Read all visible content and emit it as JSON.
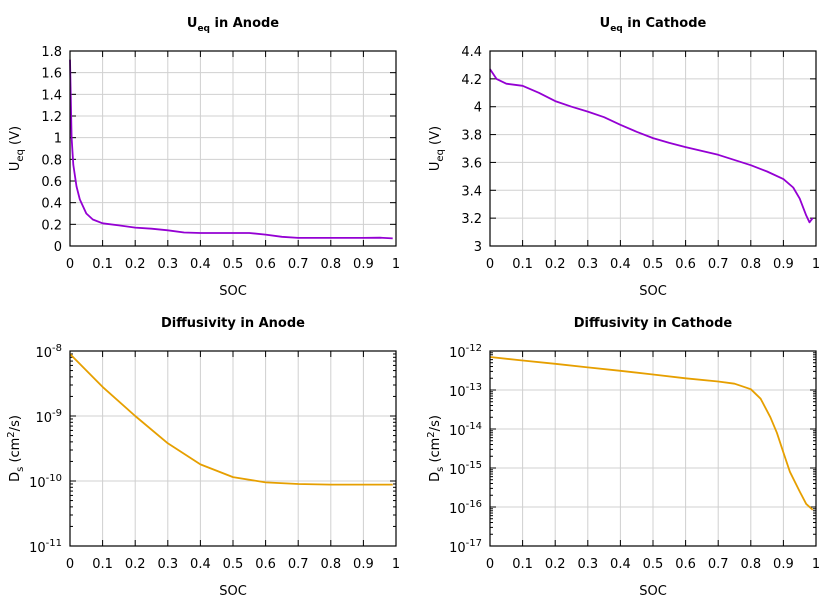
{
  "chart_data": [
    {
      "type": "line",
      "title": {
        "main": "U",
        "sub": "eq",
        "rest": " in Anode"
      },
      "xlabel": "SOC",
      "ylabel": {
        "main": "U",
        "sub": "eq",
        "rest": " (V)"
      },
      "xlim": [
        0,
        1
      ],
      "ylim": [
        0,
        1.8
      ],
      "yscale": "linear",
      "grid": true,
      "xticks": [
        0,
        0.1,
        0.2,
        0.3,
        0.4,
        0.5,
        0.6,
        0.7,
        0.8,
        0.9,
        1
      ],
      "xtick_labels": [
        "0",
        "0.1",
        "0.2",
        "0.3",
        "0.4",
        "0.5",
        "0.6",
        "0.7",
        "0.8",
        "0.9",
        "1"
      ],
      "yticks": [
        0,
        0.2,
        0.4,
        0.6,
        0.8,
        1,
        1.2,
        1.4,
        1.6,
        1.8
      ],
      "ytick_labels": [
        "0",
        "0.2",
        "0.4",
        "0.6",
        "0.8",
        "1",
        "1.2",
        "1.4",
        "1.6",
        "1.8"
      ],
      "color": "#9400d3",
      "x": [
        0,
        0.005,
        0.01,
        0.02,
        0.03,
        0.05,
        0.07,
        0.1,
        0.15,
        0.2,
        0.25,
        0.3,
        0.35,
        0.4,
        0.45,
        0.5,
        0.55,
        0.6,
        0.65,
        0.7,
        0.8,
        0.9,
        0.95,
        0.99
      ],
      "y": [
        1.72,
        1.0,
        0.75,
        0.55,
        0.43,
        0.3,
        0.245,
        0.21,
        0.19,
        0.17,
        0.16,
        0.145,
        0.125,
        0.12,
        0.12,
        0.12,
        0.12,
        0.105,
        0.085,
        0.075,
        0.075,
        0.075,
        0.077,
        0.07
      ]
    },
    {
      "type": "line",
      "title": {
        "main": "U",
        "sub": "eq",
        "rest": " in Cathode"
      },
      "xlabel": "SOC",
      "ylabel": {
        "main": "U",
        "sub": "eq",
        "rest": " (V)"
      },
      "xlim": [
        0,
        1
      ],
      "ylim": [
        3,
        4.4
      ],
      "yscale": "linear",
      "grid": true,
      "xticks": [
        0,
        0.1,
        0.2,
        0.3,
        0.4,
        0.5,
        0.6,
        0.7,
        0.8,
        0.9,
        1
      ],
      "xtick_labels": [
        "0",
        "0.1",
        "0.2",
        "0.3",
        "0.4",
        "0.5",
        "0.6",
        "0.7",
        "0.8",
        "0.9",
        "1"
      ],
      "yticks": [
        3,
        3.2,
        3.4,
        3.6,
        3.8,
        4,
        4.2,
        4.4
      ],
      "ytick_labels": [
        "3",
        "3.2",
        "3.4",
        "3.6",
        "3.8",
        "4",
        "4.2",
        "4.4"
      ],
      "color": "#9400d3",
      "x": [
        0,
        0.02,
        0.05,
        0.1,
        0.15,
        0.2,
        0.25,
        0.3,
        0.35,
        0.4,
        0.45,
        0.5,
        0.55,
        0.6,
        0.7,
        0.8,
        0.85,
        0.9,
        0.93,
        0.95,
        0.97,
        0.98,
        0.99
      ],
      "y": [
        4.27,
        4.2,
        4.165,
        4.15,
        4.1,
        4.04,
        4.0,
        3.965,
        3.925,
        3.87,
        3.82,
        3.775,
        3.74,
        3.71,
        3.655,
        3.58,
        3.535,
        3.48,
        3.42,
        3.34,
        3.22,
        3.17,
        3.2
      ]
    },
    {
      "type": "line",
      "title": {
        "main": "Diffusivity in Anode",
        "sub": "",
        "rest": ""
      },
      "xlabel": "SOC",
      "ylabel": {
        "main": "D",
        "sub": "s",
        "rest": " (cm",
        "sup": "2",
        "rest2": "/s)"
      },
      "xlim": [
        0,
        1
      ],
      "ylim": [
        1e-11,
        1e-08
      ],
      "yscale": "log",
      "grid": true,
      "xticks": [
        0,
        0.1,
        0.2,
        0.3,
        0.4,
        0.5,
        0.6,
        0.7,
        0.8,
        0.9,
        1
      ],
      "xtick_labels": [
        "0",
        "0.1",
        "0.2",
        "0.3",
        "0.4",
        "0.5",
        "0.6",
        "0.7",
        "0.8",
        "0.9",
        "1"
      ],
      "yticks": [
        1e-11,
        1e-10,
        1e-09,
        1e-08
      ],
      "ytick_labels": [
        {
          "base": "10",
          "exp": "-11"
        },
        {
          "base": "10",
          "exp": "-10"
        },
        {
          "base": "10",
          "exp": "-9"
        },
        {
          "base": "10",
          "exp": "-8"
        }
      ],
      "color": "#e69f00",
      "x": [
        0,
        0.1,
        0.2,
        0.3,
        0.4,
        0.5,
        0.6,
        0.7,
        0.8,
        0.9,
        0.99
      ],
      "y": [
        9e-09,
        2.8e-09,
        1e-09,
        3.8e-10,
        1.8e-10,
        1.15e-10,
        9.5e-11,
        9e-11,
        8.8e-11,
        8.8e-11,
        8.8e-11
      ]
    },
    {
      "type": "line",
      "title": {
        "main": "Diffusivity in Cathode",
        "sub": "",
        "rest": ""
      },
      "xlabel": "SOC",
      "ylabel": {
        "main": "D",
        "sub": "s",
        "rest": " (cm",
        "sup": "2",
        "rest2": "/s)"
      },
      "xlim": [
        0,
        1
      ],
      "ylim": [
        1e-17,
        1e-12
      ],
      "yscale": "log",
      "grid": true,
      "xticks": [
        0,
        0.1,
        0.2,
        0.3,
        0.4,
        0.5,
        0.6,
        0.7,
        0.8,
        0.9,
        1
      ],
      "xtick_labels": [
        "0",
        "0.1",
        "0.2",
        "0.3",
        "0.4",
        "0.5",
        "0.6",
        "0.7",
        "0.8",
        "0.9",
        "1"
      ],
      "yticks": [
        1e-17,
        1e-16,
        1e-15,
        1e-14,
        1e-13,
        1e-12
      ],
      "ytick_labels": [
        {
          "base": "10",
          "exp": "-17"
        },
        {
          "base": "10",
          "exp": "-16"
        },
        {
          "base": "10",
          "exp": "-15"
        },
        {
          "base": "10",
          "exp": "-14"
        },
        {
          "base": "10",
          "exp": "-13"
        },
        {
          "base": "10",
          "exp": "-12"
        }
      ],
      "color": "#e69f00",
      "x": [
        0,
        0.1,
        0.2,
        0.3,
        0.4,
        0.5,
        0.6,
        0.7,
        0.75,
        0.8,
        0.83,
        0.86,
        0.88,
        0.9,
        0.92,
        0.95,
        0.97,
        0.99
      ],
      "y": [
        7e-13,
        5.7e-13,
        4.7e-13,
        3.8e-13,
        3.1e-13,
        2.5e-13,
        2e-13,
        1.65e-13,
        1.45e-13,
        1.05e-13,
        6e-14,
        2e-14,
        8e-15,
        2.5e-15,
        8e-16,
        2.5e-16,
        1.2e-16,
        8.5e-17
      ]
    }
  ]
}
